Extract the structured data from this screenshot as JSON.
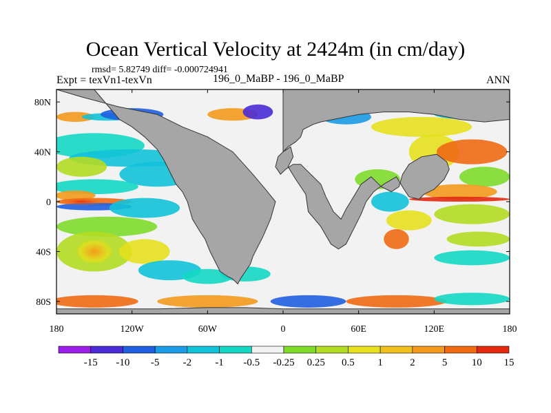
{
  "header": {
    "stats_line": "rmsd= 5.82749 diff= -0.000724941",
    "experiment": "Expt = texVn1-texVn",
    "case_label": "196_0_MaBP - 196_0_MaBP",
    "season": "ANN"
  },
  "chart_data": {
    "type": "heatmap",
    "title": "Ocean Vertical Velocity at 2424m (in cm/day)",
    "x_axis": {
      "range": [
        -180,
        180
      ],
      "ticks": [
        {
          "value": -180,
          "label": "180"
        },
        {
          "value": -120,
          "label": "120W"
        },
        {
          "value": -60,
          "label": "60W"
        },
        {
          "value": 0,
          "label": "0"
        },
        {
          "value": 60,
          "label": "60E"
        },
        {
          "value": 120,
          "label": "120E"
        },
        {
          "value": 180,
          "label": "180"
        }
      ]
    },
    "y_axis": {
      "range": [
        -90,
        90
      ],
      "ticks": [
        {
          "value": 80,
          "label": "80N"
        },
        {
          "value": 40,
          "label": "40N"
        },
        {
          "value": 0,
          "label": "0"
        },
        {
          "value": -40,
          "label": "40S"
        },
        {
          "value": -80,
          "label": "80S"
        }
      ]
    },
    "colorbar": {
      "labels": [
        "-15",
        "-10",
        "-5",
        "-2",
        "-1",
        "-0.5",
        "-0.25",
        "0.25",
        "0.5",
        "1",
        "2",
        "5",
        "10",
        "15"
      ],
      "colors": [
        "#9b1fe8",
        "#4a2bd6",
        "#1f5fe0",
        "#1c9be6",
        "#12c2d8",
        "#14d8c4",
        "#f2f2f2",
        "#7fdc2b",
        "#b3dc22",
        "#e6e01e",
        "#f0c11e",
        "#f39a1c",
        "#f06a14",
        "#e32a10"
      ]
    },
    "land_color": "#a6a6a6",
    "land_regions": [
      {
        "name": "Eurasia-Africa",
        "lon": [
          0,
          6,
          8,
          4,
          10,
          18,
          20,
          30,
          38,
          44,
          50,
          56,
          62,
          66,
          72,
          80,
          90,
          96,
          100,
          108,
          112,
          120,
          128,
          132,
          130,
          122,
          110,
          100,
          95,
          92,
          86,
          78,
          70,
          62,
          56,
          50,
          46,
          40,
          34,
          30,
          22,
          14,
          8,
          2,
          -2,
          -6,
          -4,
          4,
          10,
          14,
          16,
          20,
          24,
          30,
          40,
          60,
          80,
          100,
          120,
          140,
          160,
          180,
          180,
          90,
          0
        ],
        "lat": [
          40,
          44,
          36,
          28,
          18,
          6,
          -8,
          -20,
          -34,
          -38,
          -34,
          -22,
          -10,
          0,
          8,
          14,
          20,
          10,
          4,
          2,
          6,
          10,
          18,
          26,
          32,
          38,
          36,
          30,
          22,
          12,
          8,
          12,
          20,
          14,
          4,
          -6,
          -14,
          -8,
          4,
          14,
          22,
          30,
          30,
          26,
          22,
          28,
          36,
          44,
          48,
          52,
          58,
          60,
          62,
          64,
          66,
          70,
          72,
          72,
          70,
          66,
          64,
          66,
          90,
          90,
          90
        ]
      },
      {
        "name": "Americas",
        "lon": [
          -180,
          -150,
          -130,
          -120,
          -110,
          -100,
          -95,
          -90,
          -85,
          -80,
          -76,
          -72,
          -66,
          -62,
          -58,
          -54,
          -50,
          -44,
          -40,
          -36,
          -34,
          -30,
          -26,
          -24,
          -20,
          -16,
          -10,
          -6,
          -14,
          -24,
          -40,
          -60,
          -80,
          -100,
          -130,
          -160,
          -180
        ],
        "lat": [
          90,
          90,
          66,
          60,
          52,
          42,
          34,
          24,
          14,
          8,
          0,
          -14,
          -24,
          -30,
          -40,
          -48,
          -56,
          -60,
          -62,
          -66,
          -62,
          -56,
          -50,
          -44,
          -36,
          -28,
          -14,
          0,
          10,
          22,
          40,
          52,
          60,
          70,
          76,
          84,
          90
        ]
      },
      {
        "name": "Antarctica",
        "lon": [
          -180,
          -150,
          -100,
          -60,
          -30,
          0,
          40,
          80,
          120,
          160,
          180,
          180,
          -180
        ],
        "lat": [
          -86,
          -86,
          -86,
          -85,
          -85,
          -86,
          -86,
          -86,
          -86,
          -86,
          -86,
          -90,
          -90
        ]
      }
    ]
  }
}
